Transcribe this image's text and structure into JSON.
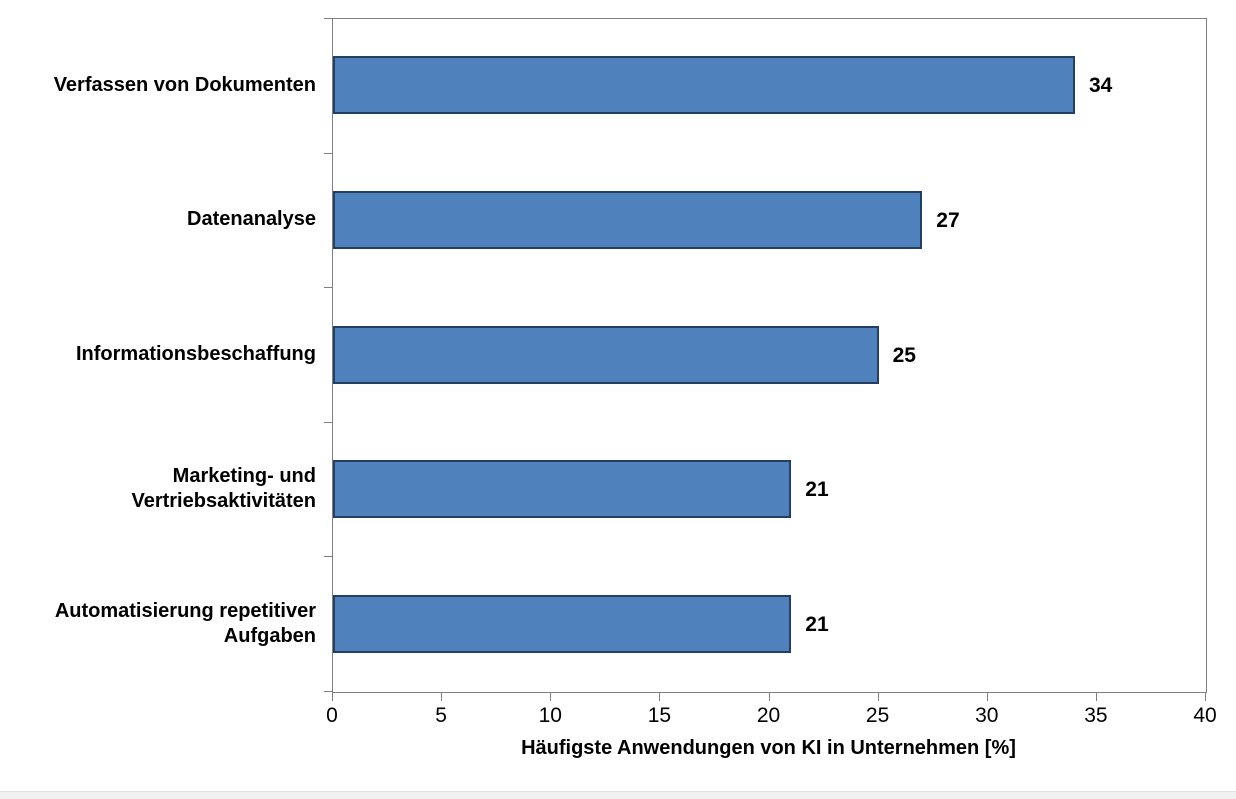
{
  "chart_data": {
    "type": "bar",
    "orientation": "horizontal",
    "categories": [
      "Verfassen von Dokumenten",
      "Datenanalyse",
      "Informationsbeschaffung",
      "Marketing- und Vertriebsaktivitäten",
      "Automatisierung repetitiver Aufgaben"
    ],
    "values": [
      34,
      27,
      25,
      21,
      21
    ],
    "value_labels": [
      "34",
      "27",
      "25",
      "21",
      "21"
    ],
    "title": "",
    "xlabel": "Häufigste Anwendungen von KI in Unternehmen [%]",
    "ylabel": "",
    "xlim": [
      0,
      40
    ],
    "xticks": [
      "0",
      "5",
      "10",
      "15",
      "20",
      "25",
      "30",
      "35",
      "40"
    ],
    "grid": false,
    "legend": false,
    "colors": {
      "bar_fill": "#4f81bd",
      "bar_border": "#243f60",
      "axis_line": "#808080",
      "text": "#000000",
      "background": "#ffffff"
    }
  }
}
